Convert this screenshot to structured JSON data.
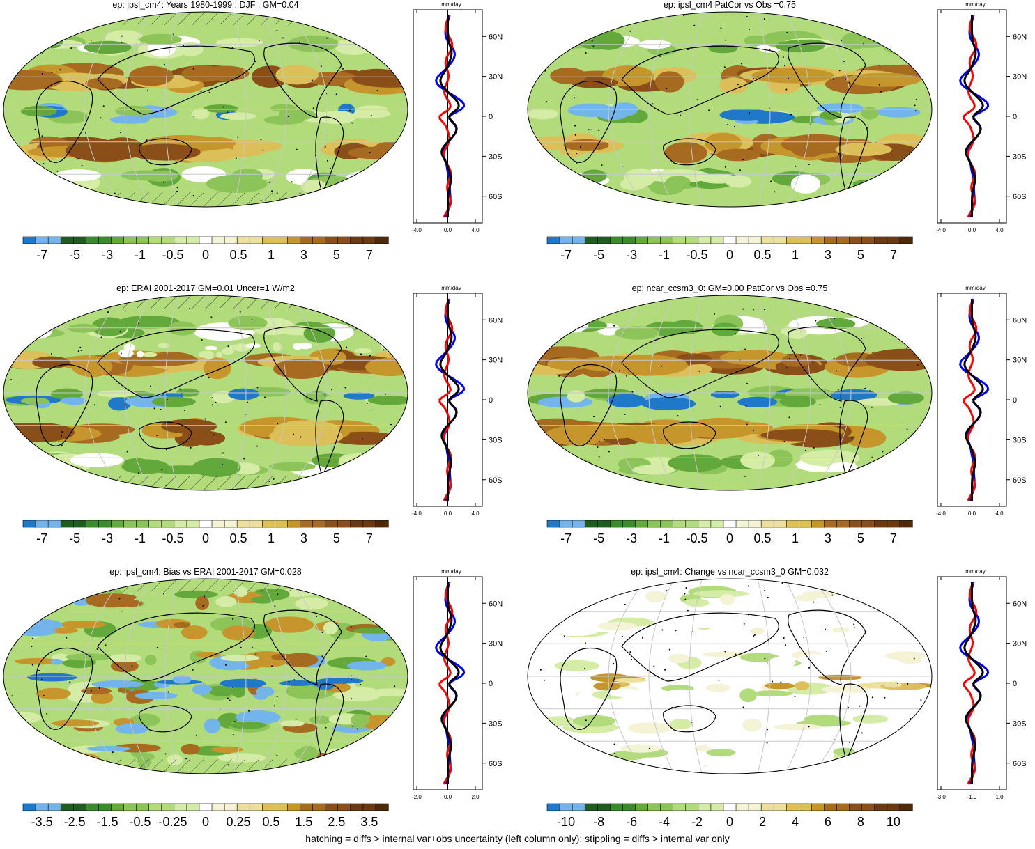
{
  "footnote": "hatching = diffs > internal var+obs uncertainty (left column only); stippling = diffs > internal var only",
  "colors": {
    "scale": [
      "#1f78c8",
      "#73b4ea",
      "#1f5c1f",
      "#3a8c2a",
      "#62a83a",
      "#8cc45a",
      "#b2dc7c",
      "#d4eca6",
      "#ffffff",
      "#f5f3d6",
      "#ece09c",
      "#dcbf58",
      "#c6952c",
      "#a66a20",
      "#8a4f18",
      "#6b3a10",
      "#4f2a0a"
    ],
    "obs_line": "#000000",
    "model_line": "#0000ff",
    "diff_line": "#ff0000"
  },
  "panels": [
    {
      "id": "p1",
      "title": "ep: ipsl_cm4: Years 1980-1999 : DJF : GM=0.04",
      "colorbar_labels": [
        "-7",
        "-5",
        "-3",
        "-1",
        "-0.5",
        "0",
        "0.5",
        "1",
        "3",
        "5",
        "7"
      ],
      "profile": {
        "unit": "mm/day",
        "xticks": [
          "-4.0",
          "0.0",
          "4.0"
        ],
        "lat_labels": [
          "60N",
          "30N",
          "0",
          "30S",
          "60S"
        ]
      },
      "hatching": true
    },
    {
      "id": "p2",
      "title": "ep: ipsl_cm4 PatCor vs Obs =0.75",
      "colorbar_labels": [
        "-7",
        "-5",
        "-3",
        "-1",
        "-0.5",
        "0",
        "0.5",
        "1",
        "3",
        "5",
        "7"
      ],
      "profile": {
        "unit": "mm/day",
        "xticks": [
          "-4.0",
          "0.0",
          "4.0"
        ],
        "lat_labels": [
          "60N",
          "30N",
          "0",
          "30S",
          "60S"
        ]
      },
      "hatching": false
    },
    {
      "id": "p3",
      "title": "ep: ERAI 2001-2017 GM=0.01 Uncer=1 W/m2",
      "colorbar_labels": [
        "-7",
        "-5",
        "-3",
        "-1",
        "-0.5",
        "0",
        "0.5",
        "1",
        "3",
        "5",
        "7"
      ],
      "profile": {
        "unit": "mm/day",
        "xticks": [
          "-4.0",
          "0.0",
          "4.0"
        ],
        "lat_labels": [
          "60N",
          "30N",
          "0",
          "30S",
          "60S"
        ]
      },
      "hatching": true
    },
    {
      "id": "p4",
      "title": "ep: ncar_ccsm3_0: GM=0.00 PatCor vs Obs =0.75",
      "colorbar_labels": [
        "-7",
        "-5",
        "-3",
        "-1",
        "-0.5",
        "0",
        "0.5",
        "1",
        "3",
        "5",
        "7"
      ],
      "profile": {
        "unit": "mm/day",
        "xticks": [
          "-4.0",
          "0.0",
          "4.0"
        ],
        "lat_labels": [
          "60N",
          "30N",
          "0",
          "30S",
          "60S"
        ]
      },
      "hatching": false
    },
    {
      "id": "p5",
      "title": "ep: ipsl_cm4: Bias vs ERAI 2001-2017 GM=0.028",
      "colorbar_labels": [
        "-3.5",
        "-2.5",
        "-1.5",
        "-0.5",
        "-0.25",
        "0",
        "0.25",
        "0.5",
        "1.5",
        "2.5",
        "3.5"
      ],
      "profile": {
        "unit": "mm/day",
        "xticks": [
          "-2.0",
          "0.0",
          "2.0"
        ],
        "lat_labels": [
          "60N",
          "30N",
          "0",
          "30S",
          "60S"
        ]
      },
      "hatching": true
    },
    {
      "id": "p6",
      "title": "ep: ipsl_cm4: Change vs ncar_ccsm3_0 GM=0.032",
      "colorbar_labels": [
        "-10",
        "-8",
        "-6",
        "-4",
        "-2",
        "0",
        "2",
        "4",
        "6",
        "8",
        "10"
      ],
      "profile": {
        "unit": "mm/day",
        "xticks": [
          "-3.0",
          "-1.0",
          "1.0"
        ],
        "lat_labels": [
          "60N",
          "30N",
          "0",
          "30S",
          "60S"
        ]
      },
      "hatching": false
    }
  ]
}
